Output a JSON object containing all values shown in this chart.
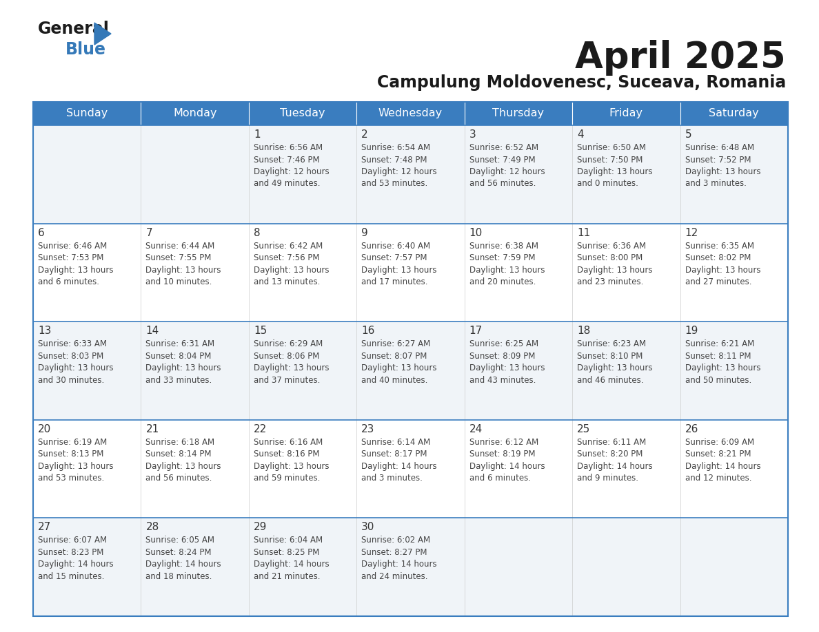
{
  "title": "April 2025",
  "subtitle": "Campulung Moldovenesc, Suceava, Romania",
  "days_of_week": [
    "Sunday",
    "Monday",
    "Tuesday",
    "Wednesday",
    "Thursday",
    "Friday",
    "Saturday"
  ],
  "header_bg_color": "#3a7dbf",
  "header_text_color": "#ffffff",
  "cell_bg_odd": "#f0f4f8",
  "cell_bg_even": "#ffffff",
  "day_number_color": "#333333",
  "cell_text_color": "#444444",
  "border_color": "#3a7dbf",
  "title_color": "#1a1a1a",
  "subtitle_color": "#1a1a1a",
  "calendar_data": [
    [
      null,
      null,
      {
        "day": 1,
        "sunrise": "6:56 AM",
        "sunset": "7:46 PM",
        "daylight": "12 hours\nand 49 minutes."
      },
      {
        "day": 2,
        "sunrise": "6:54 AM",
        "sunset": "7:48 PM",
        "daylight": "12 hours\nand 53 minutes."
      },
      {
        "day": 3,
        "sunrise": "6:52 AM",
        "sunset": "7:49 PM",
        "daylight": "12 hours\nand 56 minutes."
      },
      {
        "day": 4,
        "sunrise": "6:50 AM",
        "sunset": "7:50 PM",
        "daylight": "13 hours\nand 0 minutes."
      },
      {
        "day": 5,
        "sunrise": "6:48 AM",
        "sunset": "7:52 PM",
        "daylight": "13 hours\nand 3 minutes."
      }
    ],
    [
      {
        "day": 6,
        "sunrise": "6:46 AM",
        "sunset": "7:53 PM",
        "daylight": "13 hours\nand 6 minutes."
      },
      {
        "day": 7,
        "sunrise": "6:44 AM",
        "sunset": "7:55 PM",
        "daylight": "13 hours\nand 10 minutes."
      },
      {
        "day": 8,
        "sunrise": "6:42 AM",
        "sunset": "7:56 PM",
        "daylight": "13 hours\nand 13 minutes."
      },
      {
        "day": 9,
        "sunrise": "6:40 AM",
        "sunset": "7:57 PM",
        "daylight": "13 hours\nand 17 minutes."
      },
      {
        "day": 10,
        "sunrise": "6:38 AM",
        "sunset": "7:59 PM",
        "daylight": "13 hours\nand 20 minutes."
      },
      {
        "day": 11,
        "sunrise": "6:36 AM",
        "sunset": "8:00 PM",
        "daylight": "13 hours\nand 23 minutes."
      },
      {
        "day": 12,
        "sunrise": "6:35 AM",
        "sunset": "8:02 PM",
        "daylight": "13 hours\nand 27 minutes."
      }
    ],
    [
      {
        "day": 13,
        "sunrise": "6:33 AM",
        "sunset": "8:03 PM",
        "daylight": "13 hours\nand 30 minutes."
      },
      {
        "day": 14,
        "sunrise": "6:31 AM",
        "sunset": "8:04 PM",
        "daylight": "13 hours\nand 33 minutes."
      },
      {
        "day": 15,
        "sunrise": "6:29 AM",
        "sunset": "8:06 PM",
        "daylight": "13 hours\nand 37 minutes."
      },
      {
        "day": 16,
        "sunrise": "6:27 AM",
        "sunset": "8:07 PM",
        "daylight": "13 hours\nand 40 minutes."
      },
      {
        "day": 17,
        "sunrise": "6:25 AM",
        "sunset": "8:09 PM",
        "daylight": "13 hours\nand 43 minutes."
      },
      {
        "day": 18,
        "sunrise": "6:23 AM",
        "sunset": "8:10 PM",
        "daylight": "13 hours\nand 46 minutes."
      },
      {
        "day": 19,
        "sunrise": "6:21 AM",
        "sunset": "8:11 PM",
        "daylight": "13 hours\nand 50 minutes."
      }
    ],
    [
      {
        "day": 20,
        "sunrise": "6:19 AM",
        "sunset": "8:13 PM",
        "daylight": "13 hours\nand 53 minutes."
      },
      {
        "day": 21,
        "sunrise": "6:18 AM",
        "sunset": "8:14 PM",
        "daylight": "13 hours\nand 56 minutes."
      },
      {
        "day": 22,
        "sunrise": "6:16 AM",
        "sunset": "8:16 PM",
        "daylight": "13 hours\nand 59 minutes."
      },
      {
        "day": 23,
        "sunrise": "6:14 AM",
        "sunset": "8:17 PM",
        "daylight": "14 hours\nand 3 minutes."
      },
      {
        "day": 24,
        "sunrise": "6:12 AM",
        "sunset": "8:19 PM",
        "daylight": "14 hours\nand 6 minutes."
      },
      {
        "day": 25,
        "sunrise": "6:11 AM",
        "sunset": "8:20 PM",
        "daylight": "14 hours\nand 9 minutes."
      },
      {
        "day": 26,
        "sunrise": "6:09 AM",
        "sunset": "8:21 PM",
        "daylight": "14 hours\nand 12 minutes."
      }
    ],
    [
      {
        "day": 27,
        "sunrise": "6:07 AM",
        "sunset": "8:23 PM",
        "daylight": "14 hours\nand 15 minutes."
      },
      {
        "day": 28,
        "sunrise": "6:05 AM",
        "sunset": "8:24 PM",
        "daylight": "14 hours\nand 18 minutes."
      },
      {
        "day": 29,
        "sunrise": "6:04 AM",
        "sunset": "8:25 PM",
        "daylight": "14 hours\nand 21 minutes."
      },
      {
        "day": 30,
        "sunrise": "6:02 AM",
        "sunset": "8:27 PM",
        "daylight": "14 hours\nand 24 minutes."
      },
      null,
      null,
      null
    ]
  ]
}
